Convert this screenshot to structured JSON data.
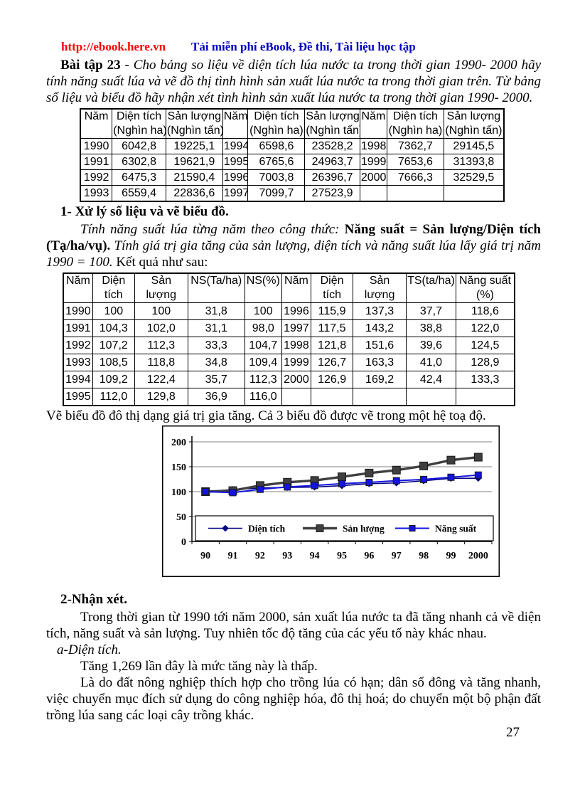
{
  "header": {
    "url": "http://ebook.here.vn",
    "tagline": "Tải miễn phí eBook, Đề thi, Tài liệu học tập",
    "url_color": "#ff0000",
    "tagline_color": "#0000c0"
  },
  "exercise": {
    "label": "Bài tập 23",
    "separator": " - ",
    "body": "Cho bảng so liệu về diện tích  lúa nước ta trong thời gian 1990- 2000 hãy tính năng suất lúa và vẽ đồ thị  tình hình sản xuất lúa nước ta trong thời gian trên. Từ bảng số liệu và biểu đồ hãy nhận xét tình hình sản xuất lúa nước ta trong thời gian 1990- 2000."
  },
  "table1": {
    "headers": [
      [
        "Năm",
        ""
      ],
      [
        "Diện tích",
        "(Nghìn ha)"
      ],
      [
        "Sản lượng",
        "(Nghìn tấn)"
      ],
      [
        "Năm",
        ""
      ],
      [
        "Diện tích",
        "(Nghìn ha)"
      ],
      [
        "Sản lượng",
        "(Nghìn tấn)"
      ],
      [
        "Năm",
        ""
      ],
      [
        "Diện tích",
        "(Nghìn ha)"
      ],
      [
        "Sản lượng",
        "(Nghìn tấn)"
      ]
    ],
    "rows": [
      [
        "1990",
        "6042,8",
        "19225,1",
        "1994",
        "6598,6",
        "23528,2",
        "1998",
        "7362,7",
        "29145,5"
      ],
      [
        "1991",
        "6302,8",
        "19621,9",
        "1995",
        "6765,6",
        "24963,7",
        "1999",
        "7653,6",
        "31393,8"
      ],
      [
        "1992",
        "6475,3",
        "21590,4",
        "1996",
        "7003,8",
        "26396,7",
        "2000",
        "7666,3",
        "32529,5"
      ],
      [
        "1993",
        "6559,4",
        "22836,6",
        "1997",
        "7099,7",
        "27523,9",
        "",
        "",
        ""
      ]
    ]
  },
  "section1": {
    "heading": "1- Xử lý số liệu và vẽ biểu đồ.",
    "p_italic1": "Tính năng suất  lúa từng năm theo công thức:  ",
    "p_bold": "Năng suất = Sản lượng/Diện tích (Tạ/ha/vụ). ",
    "p_italic2": "Tính giá trị gia tăng của sản lượng, diện tích và năng suất lúa lấy giá trị năm 1990 = 100. ",
    "p_tail": "Kết quả như sau:"
  },
  "table2": {
    "headers": [
      [
        "Năm",
        ""
      ],
      [
        "Diện",
        "tích"
      ],
      [
        "Sản",
        "lượng"
      ],
      [
        "NS(Ta/ha)",
        ""
      ],
      [
        "NS(%)",
        ""
      ],
      [
        "Năm",
        ""
      ],
      [
        "Diện",
        "tích"
      ],
      [
        "Sản",
        "lượng"
      ],
      [
        "TS(ta/ha)",
        ""
      ],
      [
        "Năng suất",
        "(%)"
      ]
    ],
    "rows": [
      [
        "1990",
        "100",
        "100",
        "31,8",
        "100",
        "1996",
        "115,9",
        "137,3",
        "37,7",
        "118,6"
      ],
      [
        "1991",
        "104,3",
        "102,0",
        "31,1",
        "98,0",
        "1997",
        "117,5",
        "143,2",
        "38,8",
        "122,0"
      ],
      [
        "1992",
        "107,2",
        "112,3",
        "33,3",
        "104,7",
        "1998",
        "121,8",
        "151,6",
        "39,6",
        "124,5"
      ],
      [
        "1993",
        "108,5",
        "118,8",
        "34,8",
        "109,4",
        "1999",
        "126,7",
        "163,3",
        "41,0",
        "128,9"
      ],
      [
        "1994",
        "109,2",
        "122,4",
        "35,7",
        "112,3",
        "2000",
        "126,9",
        "169,2",
        "42,4",
        "133,3"
      ],
      [
        "1995",
        "112,0",
        "129,8",
        "36,9",
        "116,0",
        "",
        "",
        "",
        "",
        ""
      ]
    ]
  },
  "chart_caption": "Vẽ biểu đồ đô thị dạng giá trị gia tăng.  Cả 3 biểu đồ được vẽ trong  một hệ toạ độ.",
  "chart_data": {
    "type": "line",
    "x": [
      "90",
      "91",
      "92",
      "93",
      "94",
      "95",
      "96",
      "97",
      "98",
      "99",
      "2000"
    ],
    "series": [
      {
        "name": "Diện tích",
        "marker": "diamond",
        "color": "#000080",
        "values": [
          100,
          104.3,
          107.2,
          108.5,
          109.2,
          112.0,
          115.9,
          117.5,
          121.8,
          126.7,
          126.9
        ]
      },
      {
        "name": "Sản lượng",
        "marker": "square",
        "color": "#3f3f3f",
        "values": [
          100,
          102.0,
          112.3,
          118.8,
          122.4,
          129.8,
          137.3,
          143.2,
          151.6,
          163.3,
          169.2
        ]
      },
      {
        "name": "Năng suất",
        "marker": "square",
        "color": "#1414e0",
        "values": [
          100,
          98.0,
          104.7,
          109.4,
          112.3,
          116.0,
          118.6,
          122.0,
          124.5,
          128.9,
          133.3
        ]
      }
    ],
    "title": "",
    "xlabel": "",
    "ylabel": "",
    "ylim": [
      0,
      200
    ],
    "yticks": [
      0,
      50,
      100,
      150,
      200
    ],
    "grid": true,
    "legend_position": "inside-bottom"
  },
  "section2": {
    "heading": "2-Nhận xét.",
    "p1": "Trong thời gian từ 1990 tới năm 2000, sản xuất lúa nước ta đã tăng nhanh cả về diện tích, năng suất và sản lượng. Tuy nhiên tốc độ tăng của các yếu tố này khác nhau.",
    "sub_a": "a-Diện tích.",
    "p2": "Tăng 1,269 lần đây là mức tăng này là thấp.",
    "p3": "Là do đất nông nghiệp thích hợp cho trồng lúa có hạn; dân số đông và tăng nhanh, việc chuyển mục đích sử dụng do công nghiệp hóa, đô thị hoá; do chuyển một bộ phận đất trồng lúa sang các loại cây trồng khác."
  },
  "page_number": "27"
}
